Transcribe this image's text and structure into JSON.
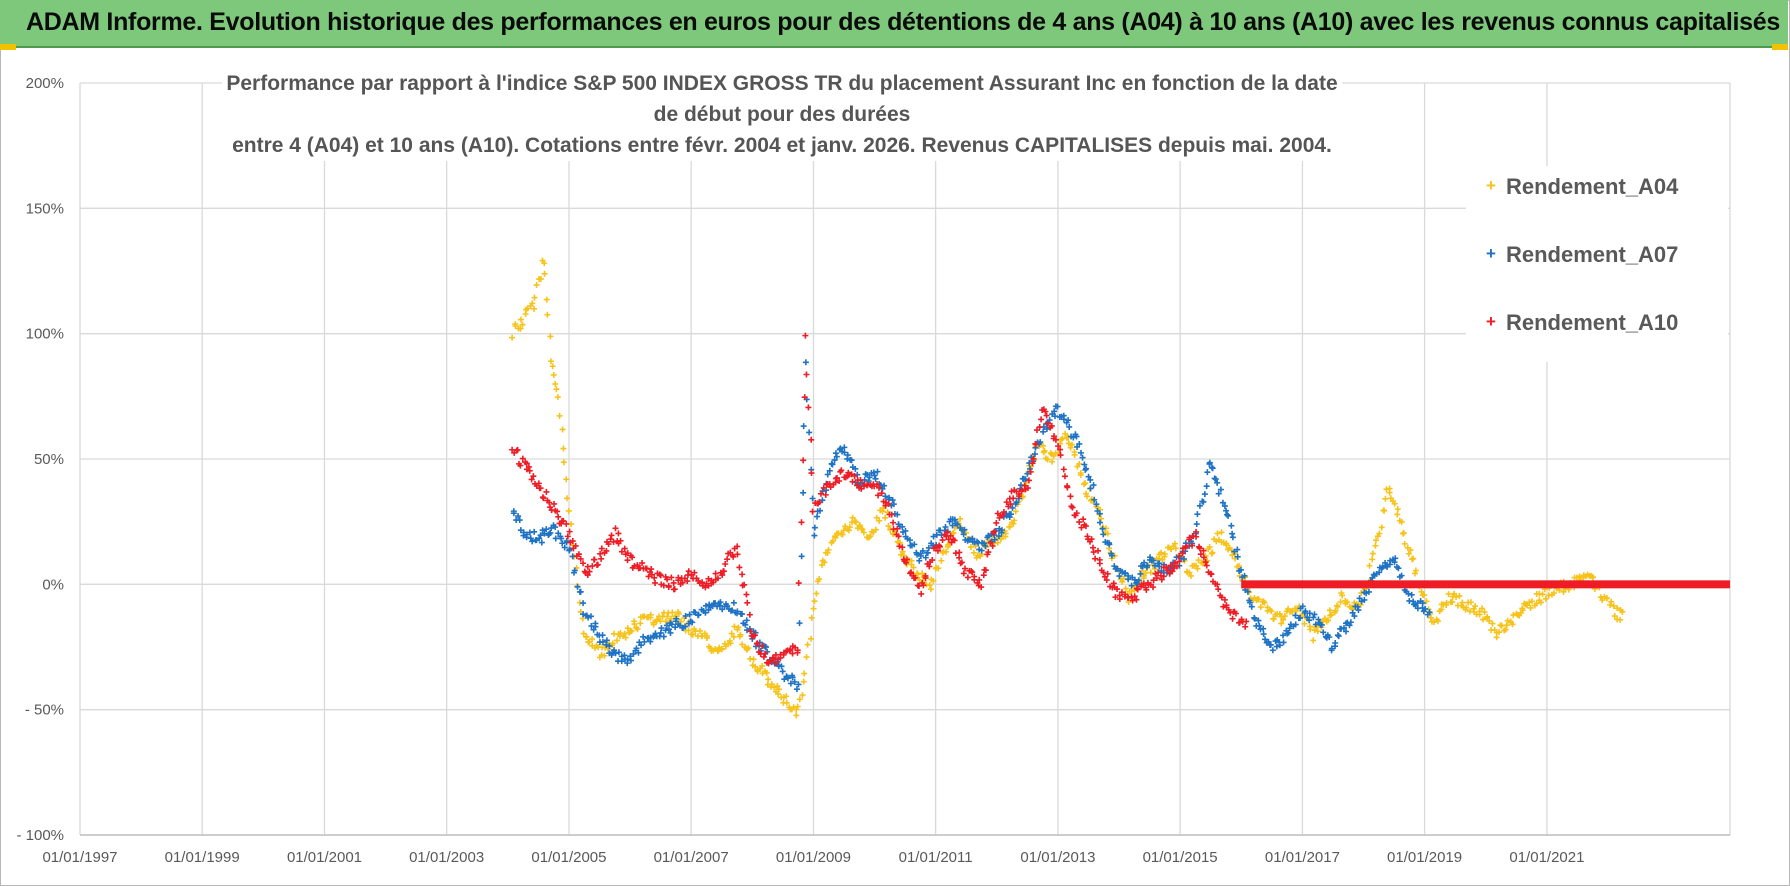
{
  "header": {
    "title": "ADAM Informe. Evolution historique des performances en euros pour des détentions de 4 ans (A04) à 10 ans (A10) avec les revenus connus capitalisés"
  },
  "colors": {
    "banner": "#7dc87a",
    "a04": "#f7c31a",
    "a07": "#1f73c4",
    "a10": "#ee1c25",
    "grid": "#d9d9d9"
  },
  "chart_data": {
    "type": "scatter",
    "title_lines": [
      "Performance par rapport à l'indice S&P 500 INDEX GROSS TR  du placement Assurant Inc en fonction de la date de début pour des durées",
      "entre 4 (A04) et 10 ans (A10). Cotations entre févr. 2004 et janv. 2026. Revenus CAPITALISES depuis mai. 2004."
    ],
    "x_range": [
      "1997-01-01",
      "2023-12-31"
    ],
    "y_range": [
      -100,
      200
    ],
    "y_ticks": [
      200,
      150,
      100,
      50,
      0,
      -50,
      -100
    ],
    "y_tick_labels": [
      "200%",
      "150%",
      "100%",
      "50%",
      "0%",
      "- 50%",
      "- 100%"
    ],
    "x_tick_labels": [
      "01/01/1997",
      "01/01/1999",
      "01/01/2001",
      "01/01/2003",
      "01/01/2005",
      "01/01/2007",
      "01/01/2009",
      "01/01/2011",
      "01/01/2013",
      "01/01/2015",
      "01/01/2017",
      "01/01/2019",
      "01/01/2021"
    ],
    "legend_position": "top-right",
    "grid": true,
    "series": [
      {
        "name": "Rendement_A04",
        "color": "#f7c31a",
        "x": [
          "2004-02-01",
          "2004-04-01",
          "2004-06-01",
          "2004-08-01",
          "2004-09-15",
          "2004-11-01",
          "2004-12-15",
          "2005-02-01",
          "2005-04-01",
          "2005-07-01",
          "2005-10-01",
          "2006-01-01",
          "2006-04-01",
          "2006-07-01",
          "2006-10-01",
          "2007-01-01",
          "2007-04-01",
          "2007-07-01",
          "2007-10-01",
          "2008-01-01",
          "2008-04-01",
          "2008-07-01",
          "2008-09-15",
          "2008-11-01",
          "2009-01-01",
          "2009-03-01",
          "2009-06-01",
          "2009-09-01",
          "2009-12-01",
          "2010-03-01",
          "2010-06-01",
          "2010-09-01",
          "2010-12-01",
          "2011-03-01",
          "2011-06-01",
          "2011-09-01",
          "2011-12-01",
          "2012-03-01",
          "2012-06-01",
          "2012-09-01",
          "2012-12-01",
          "2013-03-01",
          "2013-06-01",
          "2013-09-01",
          "2013-12-01",
          "2014-03-01",
          "2014-06-01",
          "2014-09-01",
          "2014-12-01",
          "2015-03-01",
          "2015-06-01",
          "2015-09-01",
          "2015-12-01",
          "2016-03-01",
          "2016-06-01",
          "2016-09-01",
          "2016-12-01",
          "2017-03-01",
          "2017-06-01",
          "2017-09-01",
          "2017-12-01",
          "2018-03-01",
          "2018-06-01",
          "2018-09-01",
          "2018-12-01",
          "2019-03-01",
          "2019-06-01",
          "2019-09-01",
          "2019-12-01",
          "2020-03-01",
          "2020-06-01",
          "2020-09-01",
          "2020-12-01",
          "2021-03-01",
          "2021-06-01",
          "2021-09-01",
          "2021-12-01",
          "2022-03-01"
        ],
        "values": [
          100,
          105,
          112,
          130,
          90,
          75,
          40,
          10,
          -20,
          -28,
          -22,
          -18,
          -14,
          -14,
          -12,
          -18,
          -22,
          -28,
          -18,
          -30,
          -38,
          -45,
          -52,
          -40,
          -10,
          10,
          20,
          25,
          18,
          30,
          15,
          5,
          0,
          15,
          25,
          12,
          18,
          20,
          35,
          55,
          50,
          60,
          40,
          30,
          10,
          -5,
          5,
          10,
          15,
          5,
          10,
          20,
          10,
          -5,
          -10,
          -15,
          -8,
          -20,
          -12,
          -5,
          -10,
          10,
          40,
          20,
          0,
          -15,
          -5,
          -8,
          -10,
          -20,
          -15,
          -8,
          -5,
          -2,
          0,
          5,
          -5,
          -12
        ]
      },
      {
        "name": "Rendement_A07",
        "color": "#1f73c4",
        "x": [
          "2004-02-01",
          "2004-04-01",
          "2004-07-01",
          "2004-10-01",
          "2005-01-01",
          "2005-04-01",
          "2005-07-01",
          "2005-10-01",
          "2006-01-01",
          "2006-04-01",
          "2006-07-01",
          "2006-10-01",
          "2007-01-01",
          "2007-04-01",
          "2007-07-01",
          "2007-10-01",
          "2008-01-01",
          "2008-04-01",
          "2008-07-01",
          "2008-10-01",
          "2008-11-15",
          "2009-01-01",
          "2009-04-01",
          "2009-07-01",
          "2009-10-01",
          "2010-01-01",
          "2010-04-01",
          "2010-07-01",
          "2010-10-01",
          "2011-01-01",
          "2011-04-01",
          "2011-07-01",
          "2011-10-01",
          "2012-01-01",
          "2012-04-01",
          "2012-07-01",
          "2012-10-01",
          "2013-01-01",
          "2013-04-01",
          "2013-07-01",
          "2013-10-01",
          "2014-01-01",
          "2014-04-01",
          "2014-07-01",
          "2014-10-01",
          "2015-01-01",
          "2015-04-01",
          "2015-07-01",
          "2015-10-01",
          "2016-01-01",
          "2016-04-01",
          "2016-07-01",
          "2016-10-01",
          "2017-01-01",
          "2017-04-01",
          "2017-07-01",
          "2017-10-01",
          "2018-01-01",
          "2018-04-01",
          "2018-07-01",
          "2018-10-01",
          "2019-01-01"
        ],
        "values": [
          30,
          20,
          18,
          22,
          15,
          -10,
          -20,
          -28,
          -30,
          -22,
          -20,
          -16,
          -14,
          -10,
          -8,
          -10,
          -20,
          -28,
          -35,
          -40,
          90,
          20,
          45,
          55,
          40,
          45,
          35,
          20,
          10,
          18,
          25,
          20,
          15,
          20,
          30,
          45,
          60,
          70,
          60,
          45,
          20,
          5,
          0,
          10,
          5,
          10,
          20,
          50,
          30,
          5,
          -15,
          -25,
          -20,
          -10,
          -15,
          -25,
          -15,
          -5,
          5,
          10,
          -5,
          -10
        ]
      },
      {
        "name": "Rendement_A10",
        "color": "#ee1c25",
        "x": [
          "2004-02-01",
          "2004-04-01",
          "2004-07-01",
          "2004-10-01",
          "2005-01-01",
          "2005-04-01",
          "2005-07-01",
          "2005-10-01",
          "2006-01-01",
          "2006-04-01",
          "2006-07-01",
          "2006-10-01",
          "2007-01-01",
          "2007-04-01",
          "2007-07-01",
          "2007-10-01",
          "2008-01-01",
          "2008-04-01",
          "2008-07-01",
          "2008-10-01",
          "2008-11-15",
          "2009-01-01",
          "2009-04-01",
          "2009-07-01",
          "2009-10-01",
          "2010-01-01",
          "2010-04-01",
          "2010-07-01",
          "2010-10-01",
          "2011-01-01",
          "2011-04-01",
          "2011-07-01",
          "2011-10-01",
          "2012-01-01",
          "2012-04-01",
          "2012-07-01",
          "2012-10-01",
          "2013-01-01",
          "2013-04-01",
          "2013-07-01",
          "2013-10-01",
          "2014-01-01",
          "2014-04-01",
          "2014-07-01",
          "2014-10-01",
          "2015-01-01",
          "2015-04-01",
          "2015-07-01",
          "2015-10-01",
          "2016-01-01"
        ],
        "values": [
          55,
          48,
          40,
          30,
          20,
          5,
          10,
          20,
          10,
          5,
          2,
          0,
          5,
          0,
          5,
          15,
          -20,
          -30,
          -30,
          -25,
          100,
          30,
          40,
          45,
          40,
          40,
          30,
          10,
          -2,
          15,
          20,
          5,
          0,
          25,
          35,
          40,
          70,
          55,
          30,
          20,
          5,
          -5,
          -5,
          0,
          5,
          10,
          20,
          5,
          -10,
          -15
        ]
      }
    ],
    "flat_segment": {
      "series": "Rendement_A10",
      "from": "2016-01-01",
      "to": "2023-12-31",
      "value": 0
    }
  }
}
